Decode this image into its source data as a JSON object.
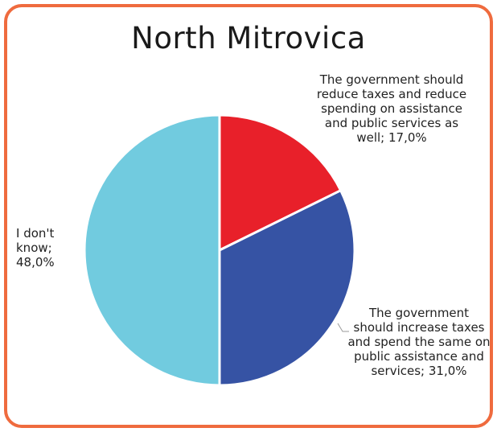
{
  "chart_data": {
    "type": "pie",
    "title": "North Mitrovica",
    "slices": [
      {
        "label": "The government should reduce taxes and reduce spending on assistance and public services as well",
        "value": 17.0,
        "display": "The government should reduce taxes and reduce spending on assistance and public services as well; 17,0%",
        "color": "#e8202a"
      },
      {
        "label": "The government should increase taxes and spend the same on public assistance and services",
        "value": 31.0,
        "display": "The government should increase taxes and spend the same on public assistance and services; 31,0%",
        "color": "#3653a4"
      },
      {
        "label": "I don't know",
        "value": 48.0,
        "display": "I don't know; 48,0%",
        "color": "#71cbdf"
      }
    ]
  },
  "frame_color": "#ef6b3e"
}
